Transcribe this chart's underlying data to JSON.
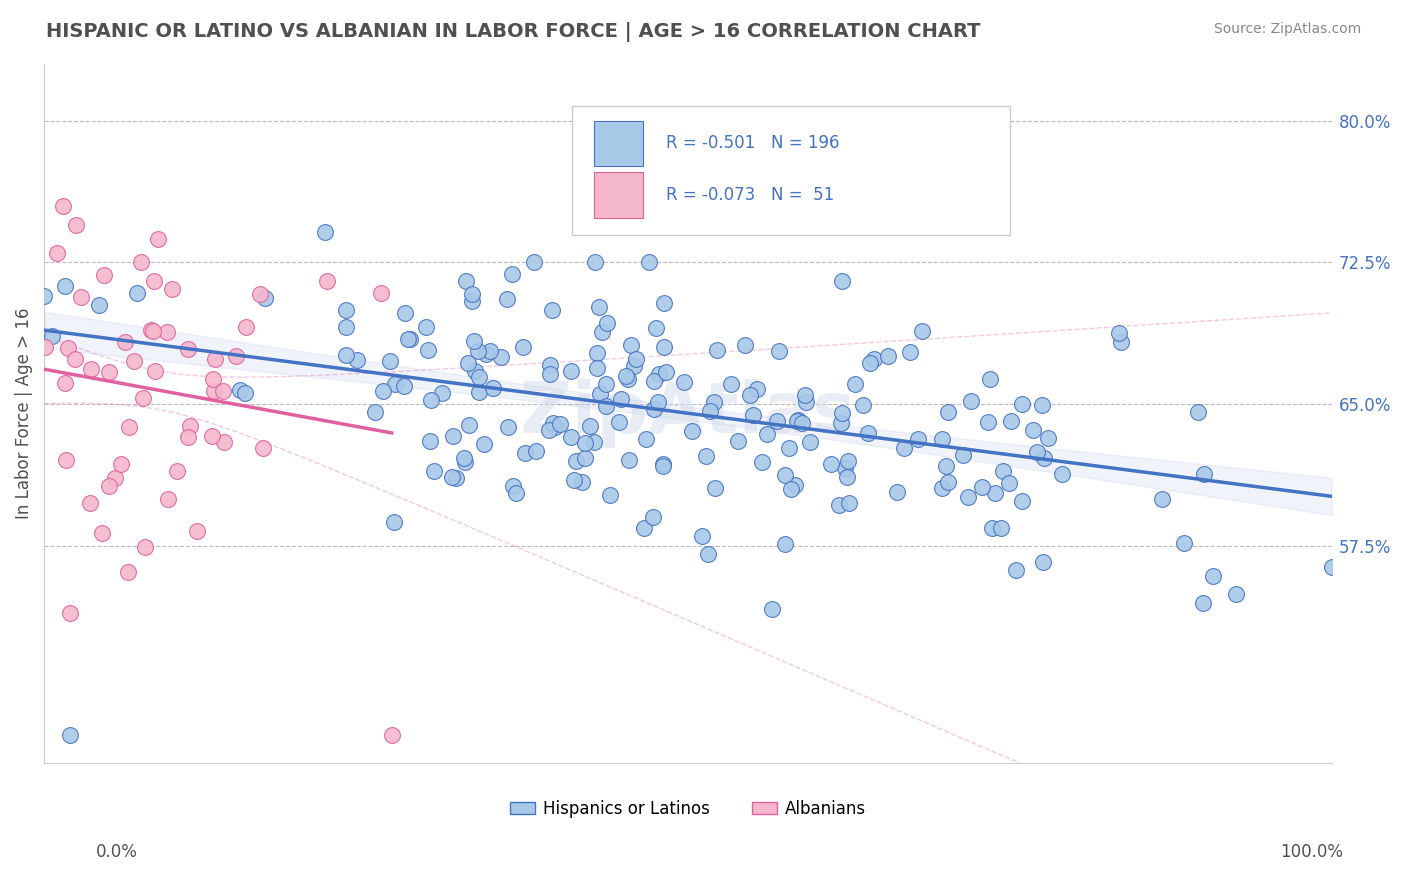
{
  "title": "HISPANIC OR LATINO VS ALBANIAN IN LABOR FORCE | AGE > 16 CORRELATION CHART",
  "source": "Source: ZipAtlas.com",
  "ylabel": "In Labor Force | Age > 16",
  "legend_label1": "Hispanics or Latinos",
  "legend_label2": "Albanians",
  "r1": "-0.501",
  "n1": "196",
  "r2": "-0.073",
  "n2": "51",
  "xlim": [
    0.0,
    1.0
  ],
  "ylim": [
    0.46,
    0.83
  ],
  "blue_color": "#a8c8e8",
  "blue_line_color": "#4472c4",
  "pink_color": "#f4b8cc",
  "pink_line_color": "#e060a0",
  "title_color": "#505050",
  "watermark": "ZipAtlas",
  "ytick_vals": [
    0.575,
    0.65,
    0.725,
    0.8
  ]
}
